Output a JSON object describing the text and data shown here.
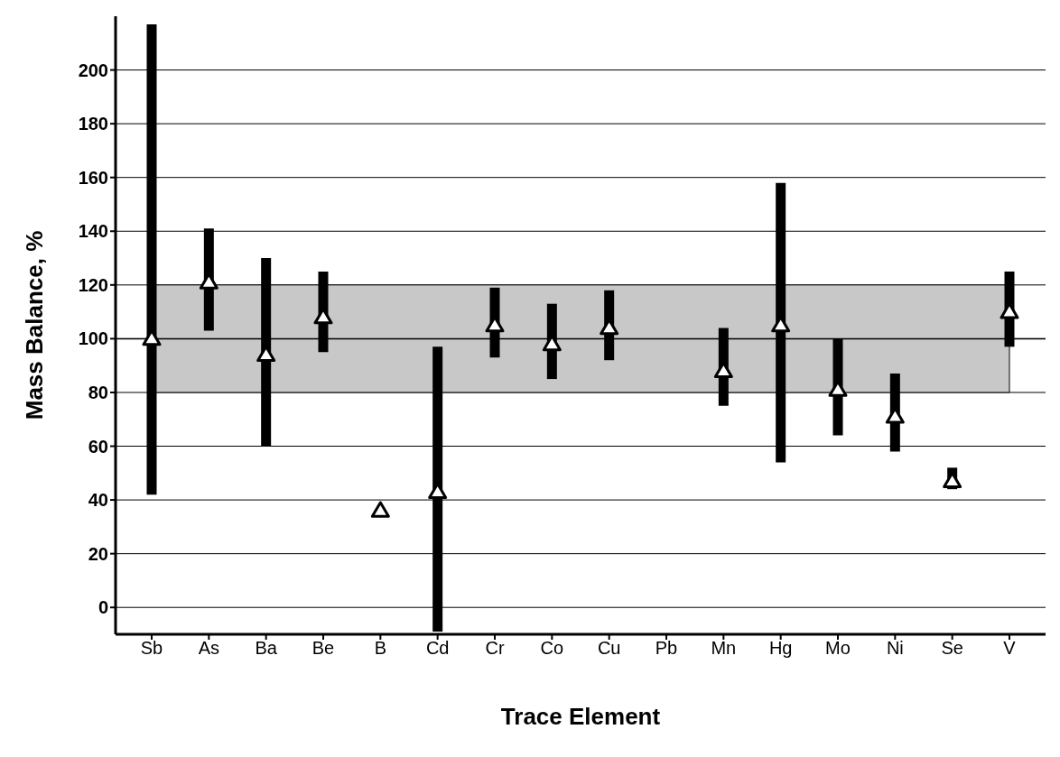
{
  "chart_data": {
    "type": "scatter",
    "xlabel": "Trace Element",
    "ylabel": "Mass Balance, %",
    "categories": [
      "Sb",
      "As",
      "Ba",
      "Be",
      "B",
      "Cd",
      "Cr",
      "Co",
      "Cu",
      "Pb",
      "Mn",
      "Hg",
      "Mo",
      "Ni",
      "Se",
      "V"
    ],
    "series": [
      {
        "color": "#000000",
        "values": [
          100,
          121,
          94,
          108,
          36,
          43,
          105,
          98,
          104,
          null,
          88,
          105,
          81,
          71,
          47,
          110
        ],
        "errors": [
          [
            42,
            217
          ],
          [
            103,
            141
          ],
          [
            60,
            130
          ],
          [
            95,
            125
          ],
          null,
          [
            -9,
            97
          ],
          [
            93,
            119
          ],
          [
            85,
            113
          ],
          [
            92,
            118
          ],
          null,
          [
            75,
            104
          ],
          [
            54,
            158
          ],
          [
            64,
            100
          ],
          [
            58,
            87
          ],
          [
            44,
            52
          ],
          [
            97,
            125
          ]
        ]
      }
    ],
    "marker": "triangle",
    "ylim": [
      -10,
      220
    ],
    "yticks": [
      0,
      20,
      40,
      60,
      80,
      100,
      120,
      140,
      160,
      180,
      200
    ],
    "grid": "y",
    "bands": [
      {
        "axis": "y",
        "from": 80,
        "to": 120,
        "color": "#c8c8c8"
      }
    ],
    "ref_lines": [
      {
        "axis": "y",
        "value": 100,
        "color": "#000000"
      }
    ],
    "legend": false
  }
}
